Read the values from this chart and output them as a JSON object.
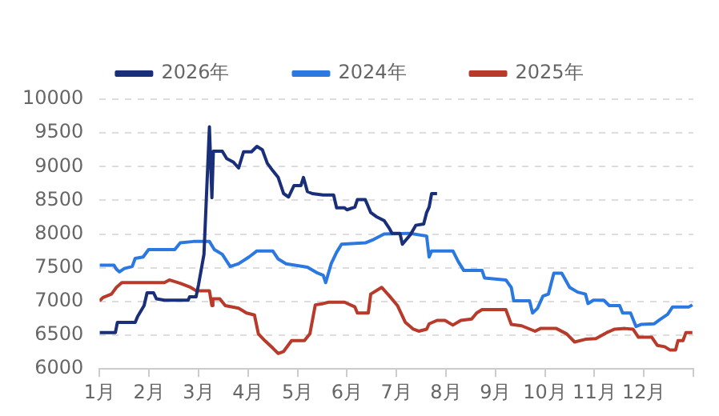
{
  "chart_data": {
    "type": "line",
    "xlim": [
      1,
      13
    ],
    "xticks": [
      {
        "value": 1,
        "label": "1月"
      },
      {
        "value": 2,
        "label": "2月"
      },
      {
        "value": 3,
        "label": "3月"
      },
      {
        "value": 4,
        "label": "4月"
      },
      {
        "value": 5,
        "label": "5月"
      },
      {
        "value": 6,
        "label": "6月"
      },
      {
        "value": 7,
        "label": "7月"
      },
      {
        "value": 8,
        "label": "8月"
      },
      {
        "value": 9,
        "label": "9月"
      },
      {
        "value": 10,
        "label": "10月"
      },
      {
        "value": 11,
        "label": "11月"
      },
      {
        "value": 12,
        "label": "12月"
      },
      {
        "value": 13,
        "label": null
      }
    ],
    "ylim": [
      6000,
      10000
    ],
    "yticks": [
      6000,
      6500,
      7000,
      7500,
      8000,
      8500,
      9000,
      9500,
      10000
    ],
    "grid": "y",
    "legend": "top",
    "marker": "none",
    "series": [
      {
        "name": "2026年",
        "color": "#1a2f7a",
        "x": [
          1.0,
          1.32,
          1.36,
          1.72,
          1.77,
          1.9,
          1.96,
          2.09,
          2.15,
          2.31,
          2.79,
          2.82,
          2.95,
          3.0,
          3.11,
          3.22,
          3.27,
          3.3,
          3.48,
          3.57,
          3.7,
          3.81,
          3.91,
          4.07,
          4.18,
          4.29,
          4.39,
          4.5,
          4.61,
          4.72,
          4.82,
          4.93,
          5.07,
          5.12,
          5.2,
          5.3,
          5.52,
          5.73,
          5.79,
          5.95,
          6.0,
          6.16,
          6.21,
          6.37,
          6.48,
          6.59,
          6.75,
          6.86,
          6.91,
          7.07,
          7.12,
          7.28,
          7.39,
          7.55,
          7.61,
          7.66,
          7.71,
          7.82
        ],
        "values": [
          6540,
          6540,
          6690,
          6690,
          6780,
          6940,
          7130,
          7130,
          7040,
          7020,
          7020,
          7070,
          7070,
          7250,
          7700,
          9590,
          8540,
          9230,
          9230,
          9120,
          9070,
          8980,
          9220,
          9220,
          9300,
          9250,
          9050,
          8940,
          8840,
          8600,
          8550,
          8720,
          8720,
          8840,
          8630,
          8600,
          8580,
          8580,
          8390,
          8390,
          8360,
          8400,
          8510,
          8510,
          8320,
          8260,
          8200,
          8080,
          8010,
          8010,
          7850,
          7990,
          8130,
          8150,
          8320,
          8400,
          8600,
          8600
        ]
      },
      {
        "name": "2024年",
        "color": "#2b78e0",
        "x": [
          1.0,
          1.29,
          1.34,
          1.4,
          1.5,
          1.66,
          1.72,
          1.88,
          1.99,
          2.52,
          2.63,
          2.9,
          3.22,
          3.32,
          3.48,
          3.64,
          3.81,
          4.02,
          4.18,
          4.5,
          4.61,
          4.77,
          5.2,
          5.41,
          5.52,
          5.57,
          5.68,
          5.79,
          5.89,
          6.37,
          6.54,
          6.75,
          7.28,
          7.61,
          7.66,
          7.71,
          8.14,
          8.25,
          8.36,
          8.73,
          8.78,
          9.21,
          9.32,
          9.37,
          9.69,
          9.75,
          9.85,
          9.96,
          10.07,
          10.18,
          10.34,
          10.5,
          10.66,
          10.82,
          10.87,
          10.98,
          11.19,
          11.3,
          11.51,
          11.57,
          11.73,
          11.84,
          11.94,
          12.21,
          12.32,
          12.48,
          12.58,
          12.91,
          12.98
        ],
        "values": [
          7540,
          7540,
          7480,
          7440,
          7490,
          7520,
          7640,
          7660,
          7770,
          7770,
          7870,
          7890,
          7890,
          7770,
          7700,
          7520,
          7560,
          7660,
          7750,
          7750,
          7630,
          7560,
          7510,
          7420,
          7390,
          7280,
          7560,
          7730,
          7850,
          7870,
          7920,
          8000,
          8010,
          7970,
          7660,
          7750,
          7750,
          7590,
          7460,
          7460,
          7350,
          7320,
          7210,
          7010,
          7010,
          6830,
          6900,
          7080,
          7110,
          7420,
          7420,
          7210,
          7140,
          7110,
          6970,
          7020,
          7020,
          6940,
          6940,
          6830,
          6830,
          6630,
          6660,
          6670,
          6730,
          6810,
          6920,
          6920,
          6950
        ]
      },
      {
        "name": "2025年",
        "color": "#b83a2a",
        "x": [
          1.0,
          1.07,
          1.24,
          1.34,
          1.45,
          2.31,
          2.41,
          2.63,
          2.84,
          2.95,
          3.22,
          3.27,
          3.29,
          3.43,
          3.54,
          3.81,
          3.97,
          4.13,
          4.21,
          4.34,
          4.5,
          4.61,
          4.72,
          4.88,
          5.14,
          5.25,
          5.36,
          5.52,
          5.63,
          5.95,
          6.16,
          6.21,
          6.43,
          6.48,
          6.7,
          6.86,
          7.02,
          7.18,
          7.34,
          7.45,
          7.61,
          7.66,
          7.82,
          7.98,
          8.14,
          8.3,
          8.52,
          8.62,
          8.73,
          9.21,
          9.32,
          9.53,
          9.8,
          9.91,
          10.23,
          10.44,
          10.6,
          10.82,
          11.03,
          11.25,
          11.41,
          11.62,
          11.78,
          11.89,
          12.16,
          12.27,
          12.42,
          12.53,
          12.64,
          12.69,
          12.79,
          12.85,
          12.98
        ],
        "values": [
          7010,
          7060,
          7110,
          7210,
          7280,
          7280,
          7320,
          7270,
          7210,
          7160,
          7160,
          6940,
          7040,
          7040,
          6940,
          6900,
          6830,
          6800,
          6520,
          6420,
          6310,
          6230,
          6260,
          6420,
          6420,
          6520,
          6950,
          6970,
          6990,
          6990,
          6920,
          6830,
          6830,
          7110,
          7210,
          7080,
          6940,
          6690,
          6590,
          6560,
          6590,
          6670,
          6720,
          6720,
          6650,
          6720,
          6740,
          6830,
          6880,
          6880,
          6660,
          6640,
          6560,
          6600,
          6600,
          6520,
          6400,
          6440,
          6450,
          6540,
          6590,
          6600,
          6590,
          6470,
          6470,
          6350,
          6330,
          6280,
          6280,
          6420,
          6420,
          6540,
          6540
        ]
      }
    ]
  }
}
